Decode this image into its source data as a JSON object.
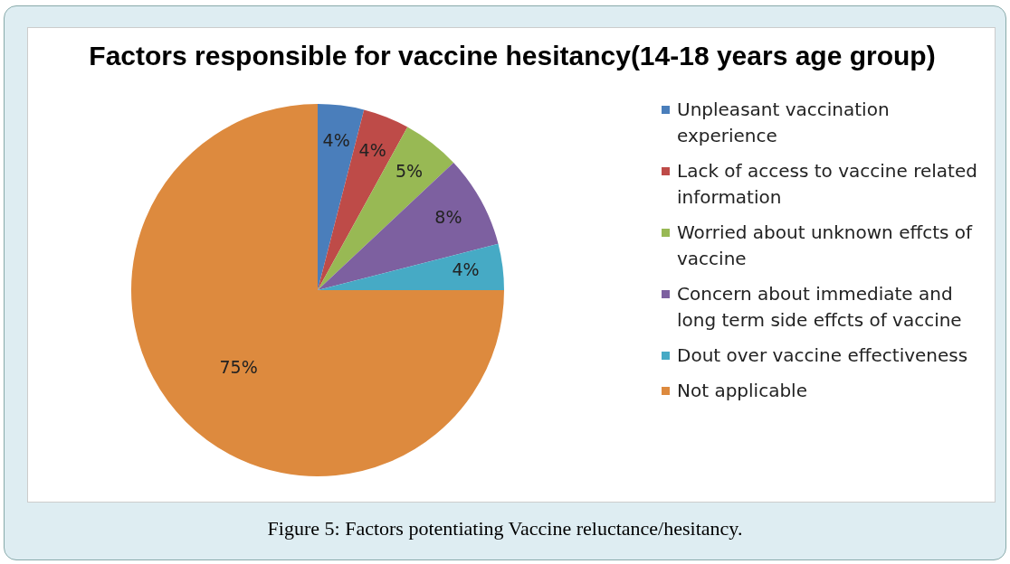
{
  "chart_data": {
    "type": "pie",
    "title": "Factors responsible for vaccine hesitancy(14-18 years age group)",
    "categories": [
      "Unpleasant vaccination experience",
      "Lack of access to vaccine related information",
      "Worried about unknown effcts of vaccine",
      "Concern about immediate and long term side effcts of vaccine",
      "Dout over vaccine effectiveness",
      "Not applicable"
    ],
    "values": [
      4,
      4,
      5,
      8,
      4,
      75
    ],
    "colors": [
      "#4a7ebb",
      "#be4b48",
      "#98b954",
      "#7d60a0",
      "#46aac5",
      "#dd8a3e"
    ],
    "value_labels": [
      "4%",
      "4%",
      "5%",
      "8%",
      "4%",
      "75%"
    ],
    "legend": "right",
    "annotations": [
      "Figure 5: Factors potentiating Vaccine reluctance/hesitancy."
    ]
  }
}
